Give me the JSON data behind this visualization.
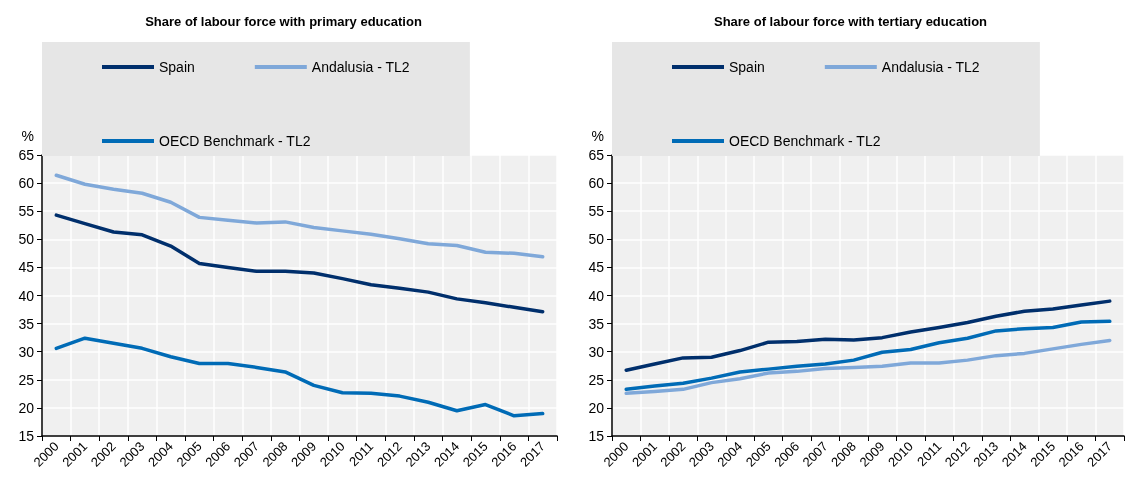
{
  "chart_data": [
    {
      "type": "line",
      "title": "Share of labour force with primary education",
      "ylabel": "%",
      "categories": [
        "2000",
        "2001",
        "2002",
        "2003",
        "2004",
        "2005",
        "2006",
        "2007",
        "2008",
        "2009",
        "2010",
        "2011",
        "2012",
        "2013",
        "2014",
        "2015",
        "2016",
        "2017"
      ],
      "series": [
        {
          "name": "Spain",
          "color": "#002f6c",
          "values": [
            54.3,
            52.8,
            51.3,
            50.8,
            48.8,
            45.7,
            45.0,
            44.3,
            44.3,
            44.0,
            43.0,
            41.9,
            41.3,
            40.6,
            39.4,
            38.7,
            37.9,
            37.1
          ]
        },
        {
          "name": "Andalusia - TL2",
          "color": "#7fa8d9",
          "values": [
            61.4,
            59.8,
            58.9,
            58.2,
            56.6,
            53.9,
            53.4,
            52.9,
            53.1,
            52.1,
            51.5,
            50.9,
            50.1,
            49.2,
            48.9,
            47.7,
            47.5,
            46.9
          ]
        },
        {
          "name": "OECD Benchmark - TL2",
          "color": "#006bb6",
          "values": [
            30.6,
            32.4,
            31.5,
            30.6,
            29.1,
            27.9,
            27.9,
            27.2,
            26.4,
            24.0,
            22.7,
            22.6,
            22.1,
            21.0,
            19.5,
            20.6,
            18.6,
            19.0
          ]
        }
      ],
      "ylim": [
        15,
        65
      ],
      "yticks": [
        15,
        20,
        25,
        30,
        35,
        40,
        45,
        50,
        55,
        60,
        65
      ],
      "grid": true,
      "legend": "top",
      "marker": "none",
      "line_style": "solid"
    },
    {
      "type": "line",
      "title": "Share of labour force with tertiary education",
      "ylabel": "%",
      "categories": [
        "2000",
        "2001",
        "2002",
        "2003",
        "2004",
        "2005",
        "2006",
        "2007",
        "2008",
        "2009",
        "2010",
        "2011",
        "2012",
        "2013",
        "2014",
        "2015",
        "2016",
        "2017"
      ],
      "series": [
        {
          "name": "Spain",
          "color": "#002f6c",
          "values": [
            26.7,
            27.8,
            28.9,
            29.0,
            30.2,
            31.7,
            31.8,
            32.2,
            32.1,
            32.5,
            33.5,
            34.3,
            35.2,
            36.3,
            37.2,
            37.6,
            38.3,
            39.0
          ]
        },
        {
          "name": "Andalusia - TL2",
          "color": "#7fa8d9",
          "values": [
            22.6,
            22.9,
            23.3,
            24.5,
            25.2,
            26.2,
            26.5,
            27.0,
            27.2,
            27.4,
            28.0,
            28.0,
            28.5,
            29.3,
            29.7,
            30.5,
            31.3,
            32.0
          ]
        },
        {
          "name": "OECD Benchmark - TL2",
          "color": "#006bb6",
          "values": [
            23.3,
            23.9,
            24.4,
            25.3,
            26.4,
            26.9,
            27.4,
            27.8,
            28.5,
            29.9,
            30.4,
            31.6,
            32.4,
            33.7,
            34.1,
            34.3,
            35.3,
            35.4
          ]
        }
      ],
      "ylim": [
        15,
        65
      ],
      "yticks": [
        15,
        20,
        25,
        30,
        35,
        40,
        45,
        50,
        55,
        60,
        65
      ],
      "grid": true,
      "legend": "top",
      "marker": "none",
      "line_style": "solid"
    }
  ]
}
